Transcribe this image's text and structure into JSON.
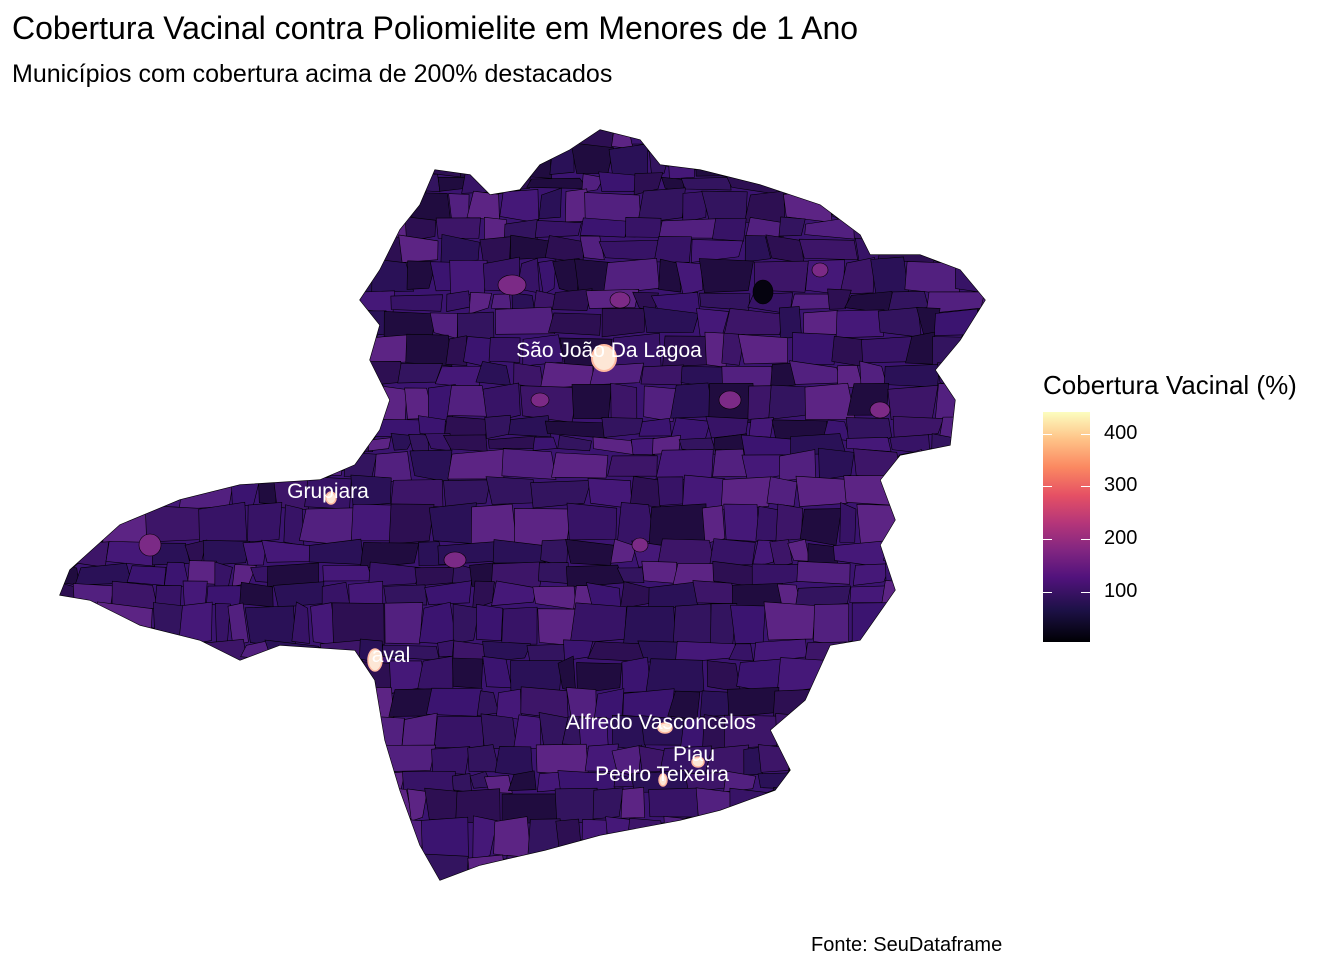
{
  "title": "Cobertura Vacinal contra Poliomielite em Menores de 1 Ano",
  "subtitle": "Municípios com cobertura acima de 200% destacados",
  "caption": "Fonte: SeuDataframe",
  "legend": {
    "title": "Cobertura Vacinal (%)",
    "ticks": [
      "400",
      "300",
      "200",
      "100"
    ],
    "palette": [
      "#000004",
      "#1d1147",
      "#51127c",
      "#822681",
      "#b63679",
      "#e65164",
      "#fb8861",
      "#fec287",
      "#fcfdbf"
    ]
  },
  "map": {
    "fill_color": "#3b1470",
    "border_color": "#000000",
    "highlight_color": "#fde7d6"
  },
  "labels": [
    {
      "text": "São João Da Lagoa"
    },
    {
      "text": "Grupiara"
    },
    {
      "text": "aval"
    },
    {
      "text": "Alfredo Vasconcelos"
    },
    {
      "text": "Piau"
    },
    {
      "text": "Pedro Teixeira"
    }
  ]
}
